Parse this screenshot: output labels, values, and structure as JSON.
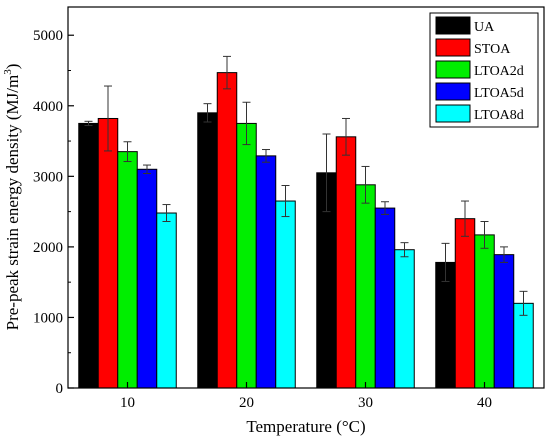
{
  "chart_data": {
    "type": "bar",
    "xlabel": "Temperature (°C)",
    "ylabel_main": "Pre-peak strain energy density (MJ/m",
    "ylabel_sup": "3",
    "ylabel_close": ")",
    "ylim": [
      0,
      5400
    ],
    "yticks": [
      0,
      1000,
      2000,
      3000,
      4000,
      5000
    ],
    "ytick_labels": [
      "0",
      "1000",
      "2000",
      "3000",
      "4000",
      "5000"
    ],
    "categories": [
      "10",
      "20",
      "30",
      "40"
    ],
    "legend_position": "top-right",
    "grid": false,
    "series": [
      {
        "name": "UA",
        "color": "#000000",
        "values": [
          3750,
          3900,
          3050,
          1780
        ],
        "errors": [
          30,
          130,
          550,
          270
        ]
      },
      {
        "name": "STOA",
        "color": "#ff0000",
        "values": [
          3820,
          4470,
          3560,
          2400
        ],
        "errors": [
          460,
          230,
          260,
          250
        ]
      },
      {
        "name": "LTOA2d",
        "color": "#00ee00",
        "values": [
          3350,
          3750,
          2880,
          2170
        ],
        "errors": [
          140,
          300,
          260,
          190
        ]
      },
      {
        "name": "LTOA5d",
        "color": "#0000ff",
        "values": [
          3100,
          3290,
          2550,
          1890
        ],
        "errors": [
          60,
          90,
          90,
          110
        ]
      },
      {
        "name": "LTOA8d",
        "color": "#00ffff",
        "values": [
          2480,
          2650,
          1960,
          1200
        ],
        "errors": [
          120,
          220,
          100,
          170
        ]
      }
    ]
  }
}
